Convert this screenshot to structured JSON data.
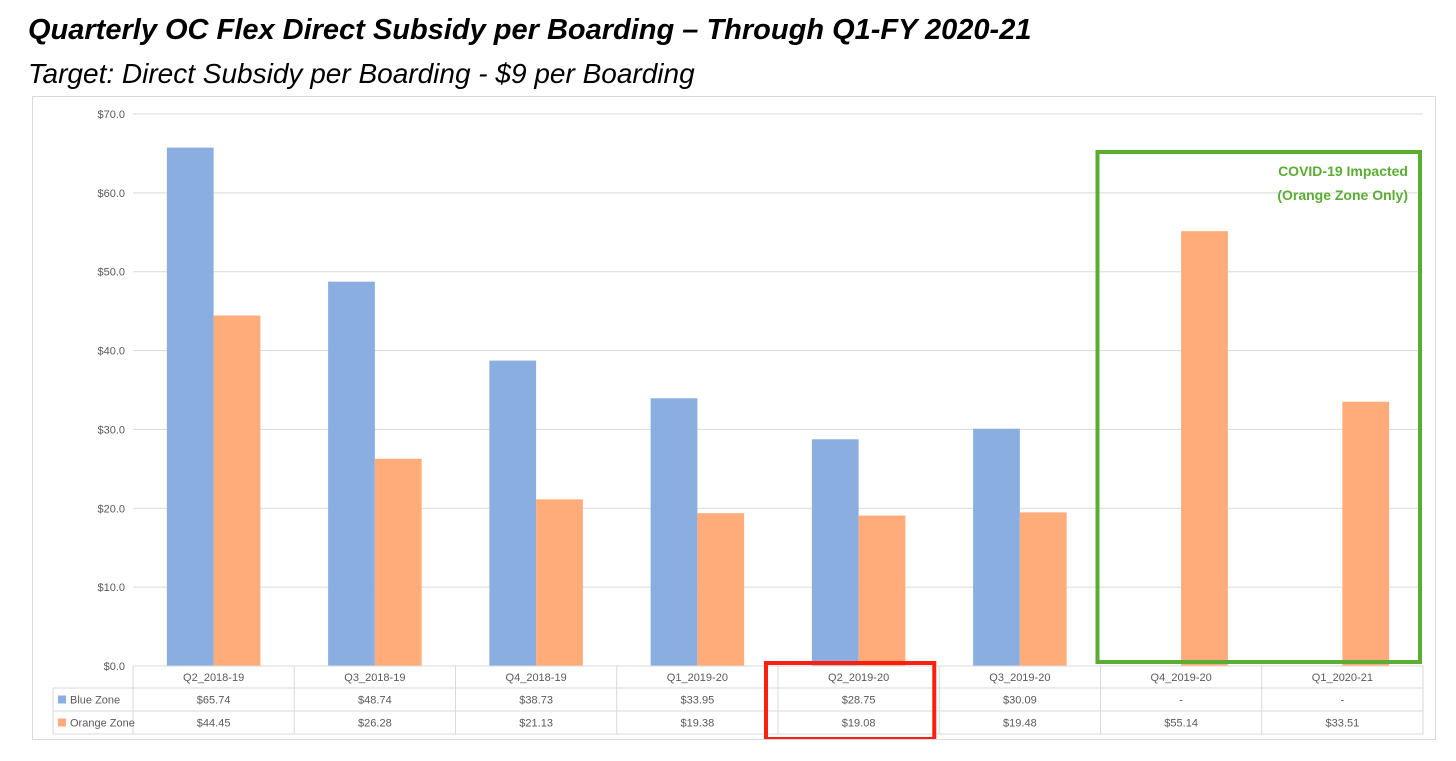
{
  "header": {
    "title": "Quarterly OC Flex Direct Subsidy per Boarding – Through Q1-FY 2020-21",
    "subtitle": "Target: Direct Subsidy per Boarding - $9 per Boarding"
  },
  "chart_data": {
    "type": "bar",
    "categories": [
      "Q2_2018-19",
      "Q3_2018-19",
      "Q4_2018-19",
      "Q1_2019-20",
      "Q2_2019-20",
      "Q3_2019-20",
      "Q4_2019-20",
      "Q1_2020-21"
    ],
    "series": [
      {
        "name": "Blue Zone",
        "color": "#8aaee0",
        "values": [
          65.74,
          48.74,
          38.73,
          33.95,
          28.75,
          30.09,
          null,
          null
        ],
        "labels": [
          "$65.74",
          "$48.74",
          "$38.73",
          "$33.95",
          "$28.75",
          "$30.09",
          "-",
          "-"
        ]
      },
      {
        "name": "Orange Zone",
        "color": "#ffab7a",
        "values": [
          44.45,
          26.28,
          21.13,
          19.38,
          19.08,
          19.48,
          55.14,
          33.51
        ],
        "labels": [
          "$44.45",
          "$26.28",
          "$21.13",
          "$19.38",
          "$19.08",
          "$19.48",
          "$55.14",
          "$33.51"
        ]
      }
    ],
    "ylim": [
      0,
      70
    ],
    "yticks": [
      "$0.0",
      "$10.0",
      "$20.0",
      "$30.0",
      "$40.0",
      "$50.0",
      "$60.0",
      "$70.0"
    ],
    "xlabel": "",
    "ylabel": "",
    "grid": true,
    "legend": "data-table",
    "annotations": [
      {
        "text_lines": [
          "COVID-19 Impacted",
          "(Orange Zone Only)"
        ],
        "color": "#5aac32",
        "categories": [
          "Q4_2019-20",
          "Q1_2020-21"
        ]
      },
      {
        "text_lines": [],
        "color": "#ff1f0f",
        "categories": [
          "Q2_2019-20"
        ]
      }
    ]
  }
}
